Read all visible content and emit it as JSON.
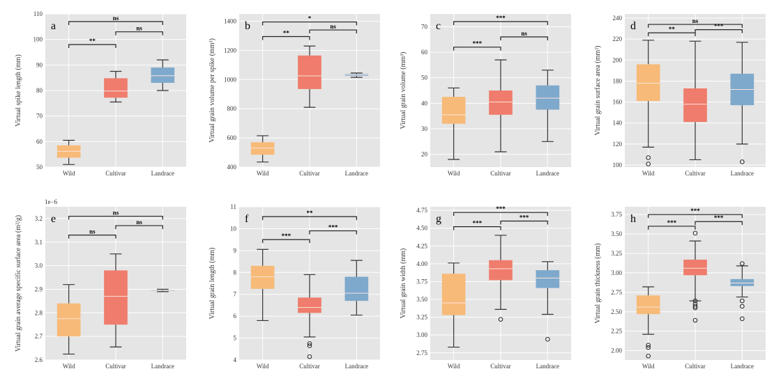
{
  "colors": {
    "Wild": "#f7ba78",
    "Cultivar": "#ef7c6c",
    "Landrace": "#7ea9cc",
    "panel_bg": "#e5e5e5",
    "grid": "#ffffff"
  },
  "chart_data": [
    {
      "type": "box",
      "letter": "a",
      "ylabel": "Virtual spike length (mm)",
      "ylim": [
        50,
        110
      ],
      "yticks": [
        50,
        60,
        70,
        80,
        90,
        100,
        110
      ],
      "tick_labels": [
        "50",
        "60",
        "70",
        "80",
        "90",
        "100",
        "110"
      ],
      "sci": "",
      "categories": [
        "Wild",
        "Cultivar",
        "Landrace"
      ],
      "boxes": [
        {
          "name": "Wild",
          "whislo": 51,
          "q1": 53.7,
          "med": 56.2,
          "q3": 58.5,
          "whishi": 60.5,
          "fliers": []
        },
        {
          "name": "Cultivar",
          "whislo": 75.5,
          "q1": 77.2,
          "med": 79.8,
          "q3": 84.8,
          "whishi": 87.5,
          "fliers": []
        },
        {
          "name": "Landrace",
          "whislo": 80,
          "q1": 83,
          "med": 85.8,
          "q3": 89,
          "whishi": 92,
          "fliers": []
        }
      ],
      "significance": [
        {
          "from": 0,
          "to": 1,
          "label": "**",
          "y": 98
        },
        {
          "from": 1,
          "to": 2,
          "label": "ns",
          "y": 103
        },
        {
          "from": 0,
          "to": 2,
          "label": "ns",
          "y": 107
        }
      ]
    },
    {
      "type": "box",
      "letter": "b",
      "ylabel": "Virtual grain volume per spike (mm³)",
      "ylim": [
        400,
        1450
      ],
      "yticks": [
        400,
        600,
        800,
        1000,
        1200,
        1400
      ],
      "tick_labels": [
        "400",
        "600",
        "800",
        "1000",
        "1200",
        "1400"
      ],
      "sci": "",
      "categories": [
        "Wild",
        "Cultivar",
        "Landrace"
      ],
      "boxes": [
        {
          "name": "Wild",
          "whislo": 435,
          "q1": 485,
          "med": 530,
          "q3": 570,
          "whishi": 615,
          "fliers": []
        },
        {
          "name": "Cultivar",
          "whislo": 810,
          "q1": 935,
          "med": 1025,
          "q3": 1165,
          "whishi": 1230,
          "fliers": []
        },
        {
          "name": "Landrace",
          "whislo": 1015,
          "q1": 1025,
          "med": 1032,
          "q3": 1038,
          "whishi": 1045,
          "fliers": []
        }
      ],
      "significance": [
        {
          "from": 0,
          "to": 1,
          "label": "**",
          "y": 1295
        },
        {
          "from": 1,
          "to": 2,
          "label": "ns",
          "y": 1340
        },
        {
          "from": 0,
          "to": 2,
          "label": "*",
          "y": 1395
        }
      ]
    },
    {
      "type": "box",
      "letter": "c",
      "ylabel": "Virtual grain volume (mm³)",
      "ylim": [
        15,
        75
      ],
      "yticks": [
        20,
        30,
        40,
        50,
        60,
        70
      ],
      "tick_labels": [
        "20",
        "30",
        "40",
        "50",
        "60",
        "70"
      ],
      "sci": "",
      "categories": [
        "Wild",
        "Cultivar",
        "Landrace"
      ],
      "boxes": [
        {
          "name": "Wild",
          "whislo": 18,
          "q1": 32,
          "med": 35.5,
          "q3": 42.5,
          "whishi": 46,
          "fliers": []
        },
        {
          "name": "Cultivar",
          "whislo": 21,
          "q1": 35.5,
          "med": 40.5,
          "q3": 45,
          "whishi": 57,
          "fliers": []
        },
        {
          "name": "Landrace",
          "whislo": 25,
          "q1": 37.5,
          "med": 42,
          "q3": 47,
          "whishi": 53,
          "fliers": []
        }
      ],
      "significance": [
        {
          "from": 0,
          "to": 1,
          "label": "***",
          "y": 62
        },
        {
          "from": 1,
          "to": 2,
          "label": "ns",
          "y": 66
        },
        {
          "from": 0,
          "to": 2,
          "label": "***",
          "y": 72
        }
      ]
    },
    {
      "type": "box",
      "letter": "d",
      "ylabel": "Virtual grain surface area (mm²)",
      "ylim": [
        98,
        244
      ],
      "yticks": [
        100,
        120,
        140,
        160,
        180,
        200,
        220,
        240
      ],
      "tick_labels": [
        "100",
        "120",
        "140",
        "160",
        "180",
        "200",
        "220",
        "240"
      ],
      "sci": "",
      "categories": [
        "Wild",
        "Cultivar",
        "Landrace"
      ],
      "boxes": [
        {
          "name": "Wild",
          "whislo": 117,
          "q1": 161,
          "med": 178,
          "q3": 196,
          "whishi": 219,
          "fliers": [
            107,
            101
          ]
        },
        {
          "name": "Cultivar",
          "whislo": 105,
          "q1": 141,
          "med": 158,
          "q3": 173,
          "whishi": 218,
          "fliers": []
        },
        {
          "name": "Landrace",
          "whislo": 120,
          "q1": 157,
          "med": 172,
          "q3": 187,
          "whishi": 217,
          "fliers": [
            103
          ]
        }
      ],
      "significance": [
        {
          "from": 0,
          "to": 1,
          "label": "**",
          "y": 226
        },
        {
          "from": 1,
          "to": 2,
          "label": "***",
          "y": 229
        },
        {
          "from": 0,
          "to": 2,
          "label": "ns",
          "y": 234
        }
      ]
    },
    {
      "type": "box",
      "letter": "e",
      "ylabel": "Virtual grain average specific surface area (m²/g)",
      "ylim": [
        2.6,
        3.25
      ],
      "yticks": [
        2.6,
        2.7,
        2.8,
        2.9,
        3.0,
        3.1,
        3.2
      ],
      "tick_labels": [
        "2.6",
        "2.7",
        "2.8",
        "2.9",
        "3.0",
        "3.1",
        "3.2"
      ],
      "sci": "1e−6",
      "categories": [
        "Wild",
        "Cultivar",
        "Landrace"
      ],
      "boxes": [
        {
          "name": "Wild",
          "whislo": 2.625,
          "q1": 2.7,
          "med": 2.775,
          "q3": 2.84,
          "whishi": 2.92,
          "fliers": []
        },
        {
          "name": "Cultivar",
          "whislo": 2.655,
          "q1": 2.75,
          "med": 2.87,
          "q3": 2.98,
          "whishi": 3.05,
          "fliers": []
        },
        {
          "name": "Landrace",
          "whislo": 2.89,
          "q1": 2.893,
          "med": 2.895,
          "q3": 2.897,
          "whishi": 2.9,
          "fliers": []
        }
      ],
      "significance": [
        {
          "from": 0,
          "to": 1,
          "label": "ns",
          "y": 3.13
        },
        {
          "from": 1,
          "to": 2,
          "label": "ns",
          "y": 3.17
        },
        {
          "from": 0,
          "to": 2,
          "label": "ns",
          "y": 3.21
        }
      ]
    },
    {
      "type": "box",
      "letter": "f",
      "ylabel": "Virtual grain length (mm)",
      "ylim": [
        4,
        11
      ],
      "yticks": [
        4,
        5,
        6,
        7,
        8,
        9,
        10,
        11
      ],
      "tick_labels": [
        "4",
        "5",
        "6",
        "7",
        "8",
        "9",
        "10",
        "11"
      ],
      "sci": "",
      "categories": [
        "Wild",
        "Cultivar",
        "Landrace"
      ],
      "boxes": [
        {
          "name": "Wild",
          "whislo": 5.8,
          "q1": 7.25,
          "med": 7.8,
          "q3": 8.3,
          "whishi": 9.05,
          "fliers": []
        },
        {
          "name": "Cultivar",
          "whislo": 5.05,
          "q1": 6.15,
          "med": 6.4,
          "q3": 6.85,
          "whishi": 7.9,
          "fliers": [
            4.75,
            4.65,
            4.15
          ]
        },
        {
          "name": "Landrace",
          "whislo": 6.05,
          "q1": 6.7,
          "med": 7.05,
          "q3": 7.8,
          "whishi": 8.55,
          "fliers": []
        }
      ],
      "significance": [
        {
          "from": 0,
          "to": 1,
          "label": "***",
          "y": 9.5
        },
        {
          "from": 1,
          "to": 2,
          "label": "***",
          "y": 9.9
        },
        {
          "from": 0,
          "to": 2,
          "label": "**",
          "y": 10.55
        }
      ]
    },
    {
      "type": "box",
      "letter": "g",
      "ylabel": "Virtual grain width (mm)",
      "ylim": [
        2.65,
        4.8
      ],
      "yticks": [
        2.75,
        3.0,
        3.25,
        3.5,
        3.75,
        4.0,
        4.25,
        4.5,
        4.75
      ],
      "tick_labels": [
        "2.75",
        "3.00",
        "3.25",
        "3.50",
        "3.75",
        "4.00",
        "4.25",
        "4.50",
        "4.75"
      ],
      "sci": "",
      "categories": [
        "Wild",
        "Cultivar",
        "Landrace"
      ],
      "boxes": [
        {
          "name": "Wild",
          "whislo": 2.83,
          "q1": 3.28,
          "med": 3.45,
          "q3": 3.86,
          "whishi": 4.01,
          "fliers": []
        },
        {
          "name": "Cultivar",
          "whislo": 3.36,
          "q1": 3.77,
          "med": 3.93,
          "q3": 4.05,
          "whishi": 4.4,
          "fliers": [
            3.22
          ]
        },
        {
          "name": "Landrace",
          "whislo": 3.29,
          "q1": 3.66,
          "med": 3.8,
          "q3": 3.91,
          "whishi": 4.03,
          "fliers": [
            2.94
          ]
        }
      ],
      "significance": [
        {
          "from": 0,
          "to": 1,
          "label": "***",
          "y": 4.52
        },
        {
          "from": 1,
          "to": 2,
          "label": "***",
          "y": 4.6
        },
        {
          "from": 0,
          "to": 2,
          "label": "***",
          "y": 4.72
        }
      ]
    },
    {
      "type": "box",
      "letter": "h",
      "ylabel": "Virtual grain thickness (mm)",
      "ylim": [
        1.88,
        3.85
      ],
      "yticks": [
        2.0,
        2.25,
        2.5,
        2.75,
        3.0,
        3.25,
        3.5,
        3.75
      ],
      "tick_labels": [
        "2.00",
        "2.25",
        "2.50",
        "2.75",
        "3.00",
        "3.25",
        "3.50",
        "3.75"
      ],
      "sci": "",
      "categories": [
        "Wild",
        "Cultivar",
        "Landrace"
      ],
      "boxes": [
        {
          "name": "Wild",
          "whislo": 2.21,
          "q1": 2.47,
          "med": 2.56,
          "q3": 2.71,
          "whishi": 2.82,
          "fliers": [
            2.07,
            2.04,
            1.93
          ]
        },
        {
          "name": "Cultivar",
          "whislo": 2.64,
          "q1": 2.97,
          "med": 3.06,
          "q3": 3.17,
          "whishi": 3.41,
          "fliers": [
            3.51,
            2.64,
            2.6,
            2.57,
            2.55,
            2.39
          ]
        },
        {
          "name": "Landrace",
          "whislo": 2.69,
          "q1": 2.83,
          "med": 2.87,
          "q3": 2.92,
          "whishi": 3.09,
          "fliers": [
            3.12,
            2.64,
            2.57,
            2.41
          ]
        }
      ],
      "significance": [
        {
          "from": 0,
          "to": 1,
          "label": "***",
          "y": 3.6
        },
        {
          "from": 1,
          "to": 2,
          "label": "***",
          "y": 3.66
        },
        {
          "from": 0,
          "to": 2,
          "label": "***",
          "y": 3.75
        }
      ]
    }
  ]
}
